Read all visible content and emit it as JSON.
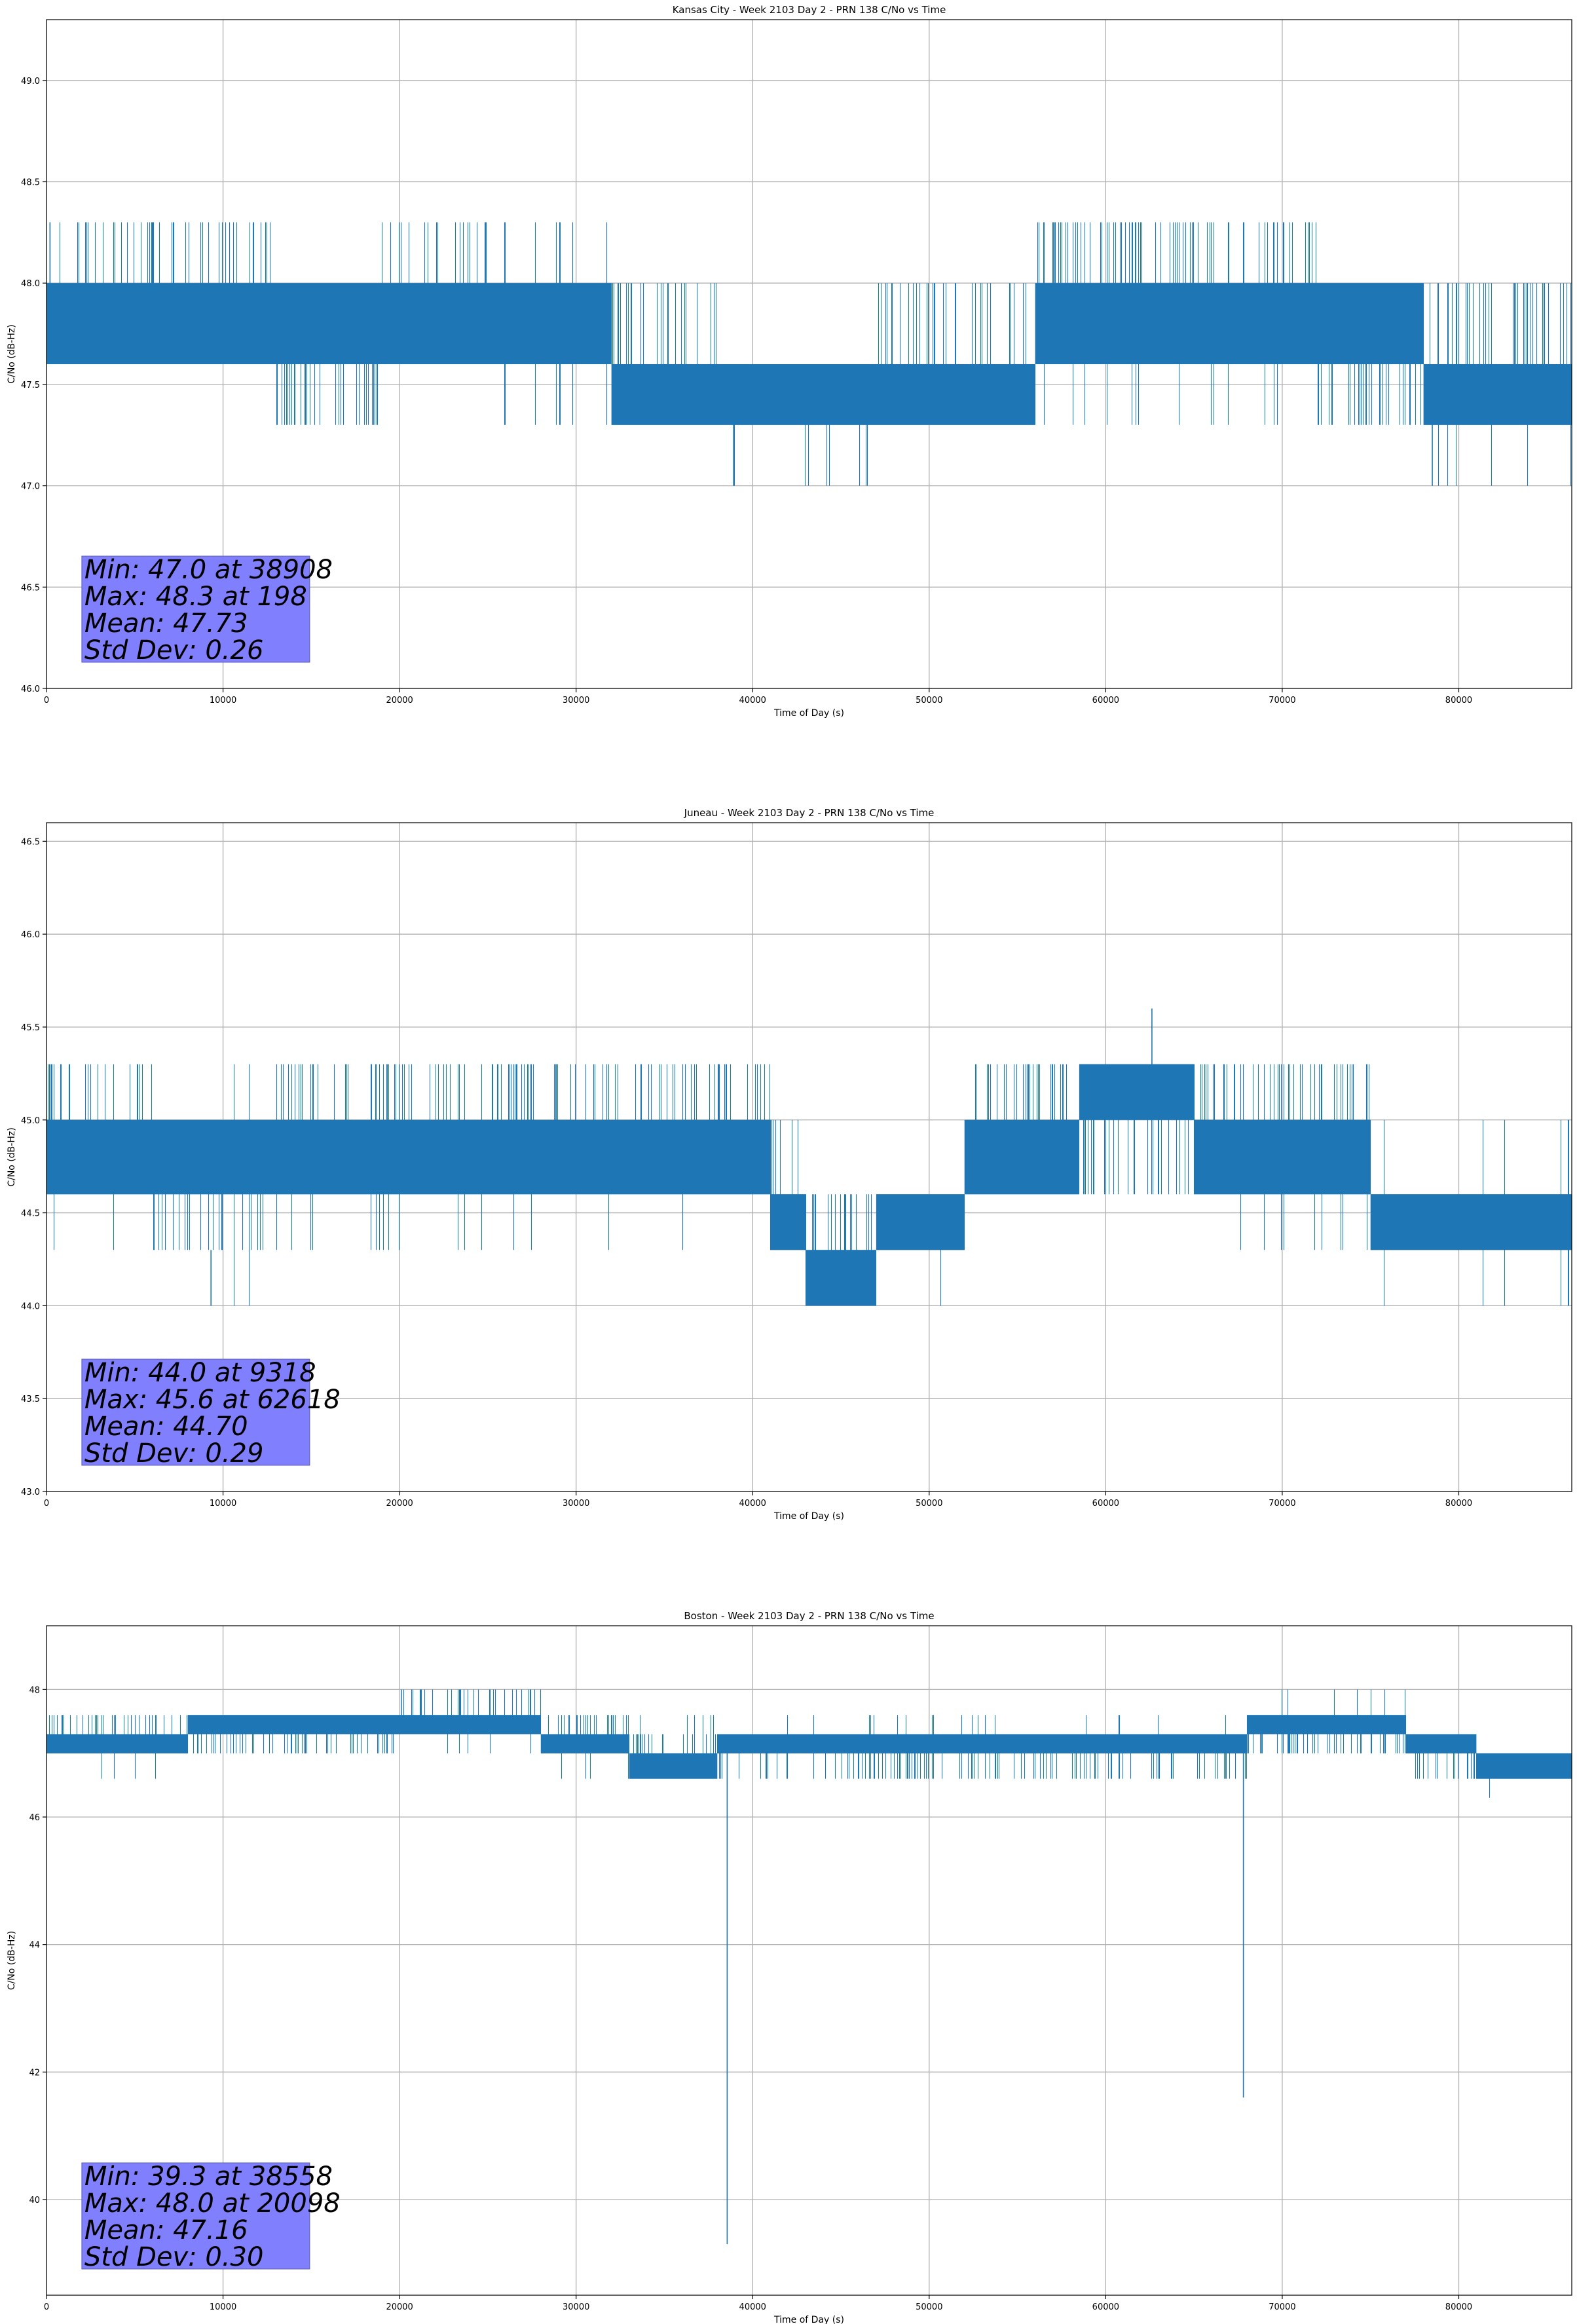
{
  "chart_data": [
    {
      "type": "line",
      "title": "Kansas City - Week 2103 Day 2 - PRN 138 C/No vs Time",
      "xlabel": "Time of Day (s)",
      "ylabel": "C/No (dB-Hz)",
      "xlim": [
        0,
        86400
      ],
      "ylim": [
        46.0,
        49.3
      ],
      "xticks": [
        0,
        10000,
        20000,
        30000,
        40000,
        50000,
        60000,
        70000,
        80000
      ],
      "yticks": [
        46.0,
        46.5,
        47.0,
        47.5,
        48.0,
        48.5,
        49.0
      ],
      "ytick_decimals": 1,
      "grid": true,
      "line_color": "#1f77b4",
      "stats": [
        "Min: 47.0 at 38908",
        "Max: 48.3 at 198",
        "Mean: 47.73",
        "Std Dev: 0.26"
      ],
      "segments": [
        {
          "x": [
            0,
            9500
          ],
          "core": [
            47.6,
            48.0
          ],
          "occ": [
            47.6,
            48.3
          ],
          "rare_low": 47.6,
          "rare_hi": 48.3
        },
        {
          "x": [
            9500,
            13000
          ],
          "core": [
            47.6,
            48.0
          ],
          "occ": [
            47.6,
            48.3
          ],
          "rare_low": 47.6,
          "rare_hi": 48.3
        },
        {
          "x": [
            13000,
            19000
          ],
          "core": [
            47.6,
            48.0
          ],
          "occ": [
            47.3,
            48.0
          ],
          "rare_low": 47.3,
          "rare_hi": 48.0
        },
        {
          "x": [
            19000,
            25000
          ],
          "core": [
            47.6,
            48.0
          ],
          "occ": [
            47.6,
            48.3
          ],
          "rare_low": 47.6,
          "rare_hi": 48.3
        },
        {
          "x": [
            25000,
            32000
          ],
          "core": [
            47.6,
            48.0
          ],
          "occ": [
            47.6,
            48.0
          ],
          "rare_low": 47.3,
          "rare_hi": 48.3
        },
        {
          "x": [
            32000,
            38000
          ],
          "core": [
            47.3,
            47.6
          ],
          "occ": [
            47.3,
            48.0
          ],
          "rare_low": 47.3,
          "rare_hi": 48.0
        },
        {
          "x": [
            38000,
            47000
          ],
          "core": [
            47.3,
            47.6
          ],
          "occ": [
            47.3,
            47.6
          ],
          "rare_low": 47.0,
          "rare_hi": 47.6
        },
        {
          "x": [
            47000,
            56000
          ],
          "core": [
            47.3,
            47.6
          ],
          "occ": [
            47.3,
            48.0
          ],
          "rare_low": 47.3,
          "rare_hi": 48.0
        },
        {
          "x": [
            56000,
            72000
          ],
          "core": [
            47.6,
            48.0
          ],
          "occ": [
            47.6,
            48.3
          ],
          "rare_low": 47.3,
          "rare_hi": 48.3
        },
        {
          "x": [
            72000,
            78000
          ],
          "core": [
            47.6,
            48.0
          ],
          "occ": [
            47.3,
            48.0
          ],
          "rare_low": 47.3,
          "rare_hi": 48.0
        },
        {
          "x": [
            78000,
            86400
          ],
          "core": [
            47.3,
            47.6
          ],
          "occ": [
            47.3,
            48.0
          ],
          "rare_low": 47.0,
          "rare_hi": 48.0
        }
      ],
      "spikes": [
        [
          198,
          47.6,
          48.3
        ],
        [
          38908,
          47.0,
          47.6
        ],
        [
          78500,
          47.0,
          47.6
        ]
      ]
    },
    {
      "type": "line",
      "title": "Juneau - Week 2103 Day 2 - PRN 138 C/No vs Time",
      "xlabel": "Time of Day (s)",
      "ylabel": "C/No (dB-Hz)",
      "xlim": [
        0,
        86400
      ],
      "ylim": [
        43.0,
        46.6
      ],
      "xticks": [
        0,
        10000,
        20000,
        30000,
        40000,
        50000,
        60000,
        70000,
        80000
      ],
      "yticks": [
        43.0,
        43.5,
        44.0,
        44.5,
        45.0,
        45.5,
        46.0,
        46.5
      ],
      "ytick_decimals": 1,
      "grid": true,
      "line_color": "#1f77b4",
      "stats": [
        "Min: 44.0 at 9318",
        "Max: 45.6 at 62618",
        "Mean: 44.70",
        "Std Dev: 0.29"
      ],
      "segments": [
        {
          "x": [
            0,
            6000
          ],
          "core": [
            44.6,
            45.0
          ],
          "occ": [
            44.6,
            45.3
          ],
          "rare_low": 44.3,
          "rare_hi": 45.3
        },
        {
          "x": [
            6000,
            13000
          ],
          "core": [
            44.6,
            45.0
          ],
          "occ": [
            44.3,
            45.0
          ],
          "rare_low": 44.0,
          "rare_hi": 45.3
        },
        {
          "x": [
            13000,
            41000
          ],
          "core": [
            44.6,
            45.0
          ],
          "occ": [
            44.6,
            45.3
          ],
          "rare_low": 44.3,
          "rare_hi": 45.3
        },
        {
          "x": [
            41000,
            43000
          ],
          "core": [
            44.3,
            44.6
          ],
          "occ": [
            44.3,
            45.0
          ],
          "rare_low": 44.3,
          "rare_hi": 45.0
        },
        {
          "x": [
            43000,
            47000
          ],
          "core": [
            44.0,
            44.3
          ],
          "occ": [
            44.0,
            44.6
          ],
          "rare_low": 44.0,
          "rare_hi": 44.6
        },
        {
          "x": [
            47000,
            52000
          ],
          "core": [
            44.3,
            44.6
          ],
          "occ": [
            44.3,
            44.6
          ],
          "rare_low": 44.0,
          "rare_hi": 44.6
        },
        {
          "x": [
            52000,
            58500
          ],
          "core": [
            44.6,
            45.0
          ],
          "occ": [
            44.6,
            45.3
          ],
          "rare_low": 44.6,
          "rare_hi": 45.3
        },
        {
          "x": [
            58500,
            65000
          ],
          "core": [
            45.0,
            45.3
          ],
          "occ": [
            44.6,
            45.3
          ],
          "rare_low": 44.6,
          "rare_hi": 45.3
        },
        {
          "x": [
            65000,
            75000
          ],
          "core": [
            44.6,
            45.0
          ],
          "occ": [
            44.6,
            45.3
          ],
          "rare_low": 44.3,
          "rare_hi": 45.3
        },
        {
          "x": [
            75000,
            86400
          ],
          "core": [
            44.3,
            44.6
          ],
          "occ": [
            44.3,
            44.6
          ],
          "rare_low": 44.0,
          "rare_hi": 45.0
        }
      ],
      "spikes": [
        [
          9318,
          44.0,
          44.3
        ],
        [
          62618,
          45.3,
          45.6
        ]
      ]
    },
    {
      "type": "line",
      "title": "Boston - Week 2103 Day 2 - PRN 138 C/No vs Time",
      "xlabel": "Time of Day (s)",
      "ylabel": "C/No (dB-Hz)",
      "xlim": [
        0,
        86400
      ],
      "ylim": [
        38.5,
        49.0
      ],
      "xticks": [
        0,
        10000,
        20000,
        30000,
        40000,
        50000,
        60000,
        70000,
        80000
      ],
      "yticks": [
        40,
        42,
        44,
        46,
        48
      ],
      "ytick_decimals": 0,
      "grid": true,
      "line_color": "#1f77b4",
      "stats": [
        "Min: 39.3 at 38558",
        "Max: 48.0 at 20098",
        "Mean: 47.16",
        "Std Dev: 0.30"
      ],
      "segments": [
        {
          "x": [
            0,
            8000
          ],
          "core": [
            47.0,
            47.3
          ],
          "occ": [
            47.0,
            47.6
          ],
          "rare_low": 46.6,
          "rare_hi": 47.6
        },
        {
          "x": [
            8000,
            20000
          ],
          "core": [
            47.3,
            47.6
          ],
          "occ": [
            47.0,
            47.6
          ],
          "rare_low": 47.0,
          "rare_hi": 47.6
        },
        {
          "x": [
            20000,
            28000
          ],
          "core": [
            47.3,
            47.6
          ],
          "occ": [
            47.3,
            48.0
          ],
          "rare_low": 47.0,
          "rare_hi": 48.0
        },
        {
          "x": [
            28000,
            33000
          ],
          "core": [
            47.0,
            47.3
          ],
          "occ": [
            47.0,
            47.6
          ],
          "rare_low": 46.6,
          "rare_hi": 47.6
        },
        {
          "x": [
            33000,
            38000
          ],
          "core": [
            46.6,
            47.0
          ],
          "occ": [
            46.6,
            47.3
          ],
          "rare_low": 46.6,
          "rare_hi": 47.6
        },
        {
          "x": [
            38000,
            68000
          ],
          "core": [
            47.0,
            47.3
          ],
          "occ": [
            46.6,
            47.3
          ],
          "rare_low": 46.6,
          "rare_hi": 47.6
        },
        {
          "x": [
            68000,
            77000
          ],
          "core": [
            47.3,
            47.6
          ],
          "occ": [
            47.0,
            47.6
          ],
          "rare_low": 47.0,
          "rare_hi": 48.0
        },
        {
          "x": [
            77000,
            81000
          ],
          "core": [
            47.0,
            47.3
          ],
          "occ": [
            46.6,
            47.3
          ],
          "rare_low": 46.6,
          "rare_hi": 47.3
        },
        {
          "x": [
            81000,
            86400
          ],
          "core": [
            46.6,
            47.0
          ],
          "occ": [
            46.6,
            47.0
          ],
          "rare_low": 46.3,
          "rare_hi": 47.0
        }
      ],
      "spikes": [
        [
          38558,
          39.3,
          47.0
        ],
        [
          67800,
          41.6,
          47.0
        ],
        [
          20098,
          47.6,
          48.0
        ]
      ]
    }
  ]
}
